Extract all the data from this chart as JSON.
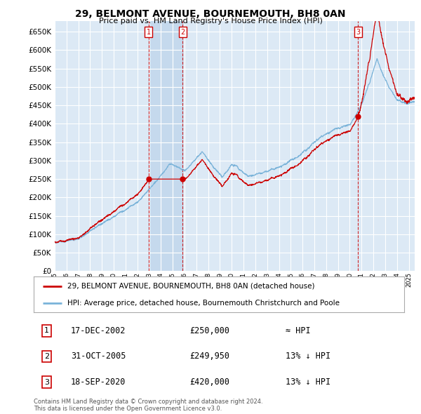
{
  "title": "29, BELMONT AVENUE, BOURNEMOUTH, BH8 0AN",
  "subtitle": "Price paid vs. HM Land Registry's House Price Index (HPI)",
  "ylim": [
    0,
    680000
  ],
  "yticks": [
    0,
    50000,
    100000,
    150000,
    200000,
    250000,
    300000,
    350000,
    400000,
    450000,
    500000,
    550000,
    600000,
    650000
  ],
  "background_color": "#ffffff",
  "plot_bg_color": "#dce9f5",
  "highlight_color": "#c5d9ed",
  "grid_color": "#ffffff",
  "legend_entries": [
    "29, BELMONT AVENUE, BOURNEMOUTH, BH8 0AN (detached house)",
    "HPI: Average price, detached house, Bournemouth Christchurch and Poole"
  ],
  "sale_line_color": "#cc0000",
  "hpi_line_color": "#7ab3d9",
  "marker_color": "#cc0000",
  "vline_color": "#cc0000",
  "transactions": [
    {
      "num": 1,
      "date": "17-DEC-2002",
      "price": 250000,
      "relation": "≈ HPI",
      "x_year": 2002.96
    },
    {
      "num": 2,
      "date": "31-OCT-2005",
      "price": 249950,
      "relation": "13% ↓ HPI",
      "x_year": 2005.83
    },
    {
      "num": 3,
      "date": "18-SEP-2020",
      "price": 420000,
      "relation": "13% ↓ HPI",
      "x_year": 2020.71
    }
  ],
  "footer": "Contains HM Land Registry data © Crown copyright and database right 2024.\nThis data is licensed under the Open Government Licence v3.0.",
  "xmin": 1995,
  "xmax": 2025.5
}
